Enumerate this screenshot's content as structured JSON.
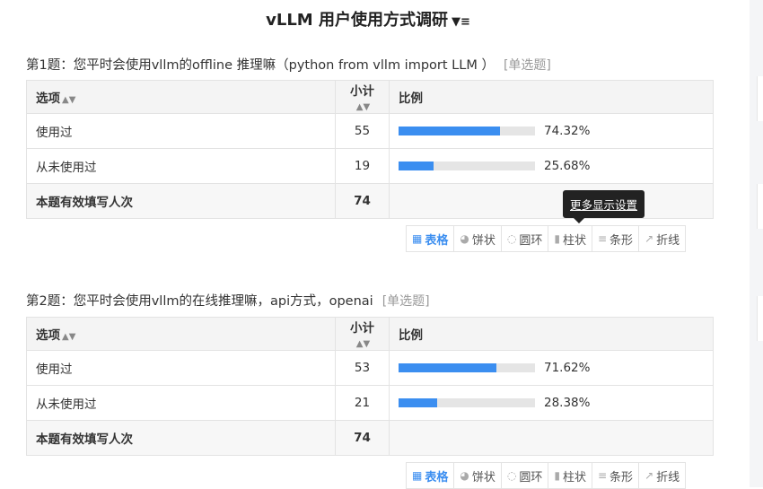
{
  "survey": {
    "title": "vLLM 用户使用方式调研"
  },
  "header_labels": {
    "option": "选项",
    "count": "小计",
    "ratio": "比例"
  },
  "questions": [
    {
      "title": "第1题：您平时会使用vllm的offline 推理嘛（python  from vllm import LLM ）",
      "tag": "[单选题]",
      "rows": [
        {
          "option": "使用过",
          "count": "55",
          "percent_text": "74.32%",
          "percent": 74.32
        },
        {
          "option": "从未使用过",
          "count": "19",
          "percent_text": "25.68%",
          "percent": 25.68
        }
      ],
      "total_label": "本题有效填写人次",
      "total": "74"
    },
    {
      "title": "第2题：您平时会使用vllm的在线推理嘛，api方式，openai",
      "tag": "[单选题]",
      "rows": [
        {
          "option": "使用过",
          "count": "53",
          "percent_text": "71.62%",
          "percent": 71.62
        },
        {
          "option": "从未使用过",
          "count": "21",
          "percent_text": "28.38%",
          "percent": 28.38
        }
      ],
      "total_label": "本题有效填写人次",
      "total": "74"
    }
  ],
  "toolbar": {
    "table": "表格",
    "pie": "饼状",
    "ring": "圆环",
    "column": "柱状",
    "bar": "条形",
    "line": "折线"
  },
  "tooltip": "更多显示设置",
  "colors": {
    "accent": "#3b8ef0",
    "track": "#e5e5e5"
  }
}
